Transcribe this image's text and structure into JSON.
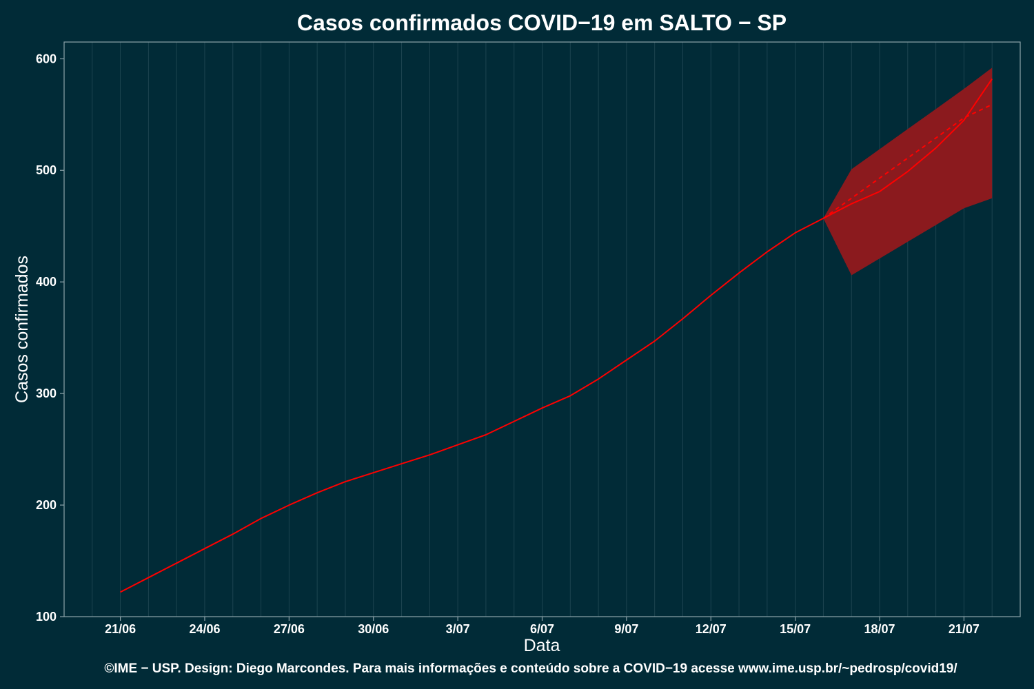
{
  "chart_data": {
    "type": "line",
    "title": "Casos confirmados COVID−19 em SALTO − SP",
    "xlabel": "Data",
    "ylabel": "Casos confirmados",
    "caption": "©IME − USP. Design: Diego Marcondes. Para mais informações e conteúdo sobre a COVID−19 acesse www.ime.usp.br/~pedrosp/covid19/",
    "ylim": [
      100,
      615
    ],
    "yticks": [
      100,
      200,
      300,
      400,
      500,
      600
    ],
    "x_dates": [
      "2020-06-21",
      "2020-06-22",
      "2020-06-23",
      "2020-06-24",
      "2020-06-25",
      "2020-06-26",
      "2020-06-27",
      "2020-06-28",
      "2020-06-29",
      "2020-06-30",
      "2020-07-01",
      "2020-07-02",
      "2020-07-03",
      "2020-07-04",
      "2020-07-05",
      "2020-07-06",
      "2020-07-07",
      "2020-07-08",
      "2020-07-09",
      "2020-07-10",
      "2020-07-11",
      "2020-07-12",
      "2020-07-13",
      "2020-07-14",
      "2020-07-15",
      "2020-07-16",
      "2020-07-17",
      "2020-07-18",
      "2020-07-19",
      "2020-07-20",
      "2020-07-21",
      "2020-07-22"
    ],
    "xlim": [
      "2020-06-19",
      "2020-07-23"
    ],
    "xtick_labels": [
      "21/06",
      "24/06",
      "27/06",
      "30/06",
      "3/07",
      "6/07",
      "9/07",
      "12/07",
      "15/07",
      "18/07",
      "21/07"
    ],
    "series": [
      {
        "style": "solid",
        "color": "#ff0000",
        "values": [
          122,
          135,
          148,
          161,
          174,
          188,
          200,
          211,
          221,
          229,
          237,
          245,
          254,
          263,
          275,
          287,
          298,
          313,
          330,
          347,
          367,
          388,
          408,
          427,
          444,
          457,
          470,
          481,
          499,
          520,
          545,
          582
        ]
      },
      {
        "style": "dashed",
        "color": "#ff0000",
        "start_index": 25,
        "values": [
          457,
          475,
          493,
          511,
          529,
          547,
          559
        ]
      }
    ],
    "band": {
      "color": "#8b1a1e",
      "start_index": 25,
      "upper": [
        457,
        501,
        519,
        537,
        555,
        573,
        592
      ],
      "lower": [
        457,
        406,
        421,
        436,
        451,
        466,
        475
      ]
    },
    "grid": true,
    "colors": {
      "background": "#012b37",
      "grid": "#1d4450",
      "axis": "#8ea4aa",
      "text": "#ffffff"
    }
  }
}
